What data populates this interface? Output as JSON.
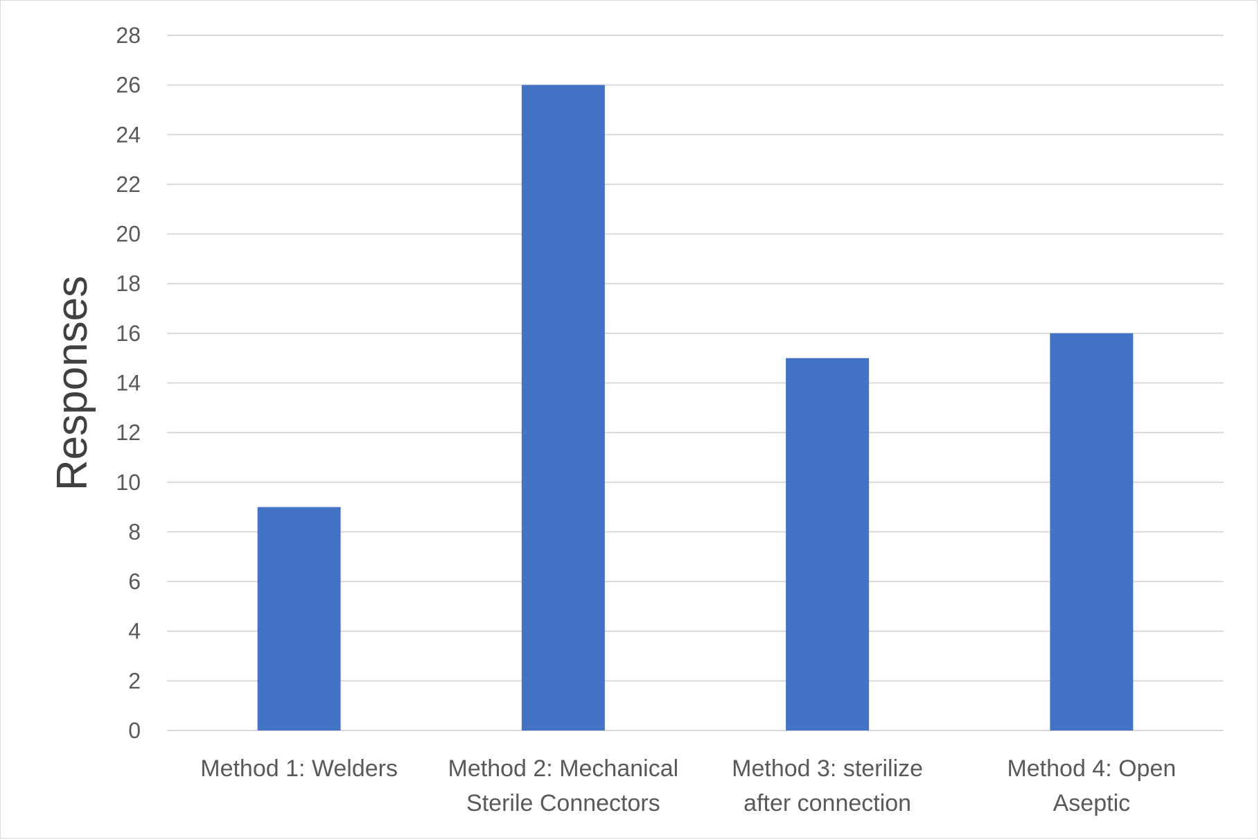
{
  "chart_data": {
    "type": "bar",
    "title": "",
    "xlabel": "",
    "ylabel": "Responses",
    "ylim": [
      0,
      28
    ],
    "ytick_step": 2,
    "grid": true,
    "legend": "none",
    "categories": [
      [
        "Method 1: Welders"
      ],
      [
        "Method 2: Mechanical",
        "Sterile Connectors"
      ],
      [
        "Method 3: sterilize",
        "after connection"
      ],
      [
        "Method 4: Open",
        "Aseptic"
      ]
    ],
    "values": [
      9,
      26,
      15,
      16
    ],
    "colors": {
      "bar": "#4472c4",
      "grid": "#d9d9d9",
      "text": "#595959"
    }
  }
}
